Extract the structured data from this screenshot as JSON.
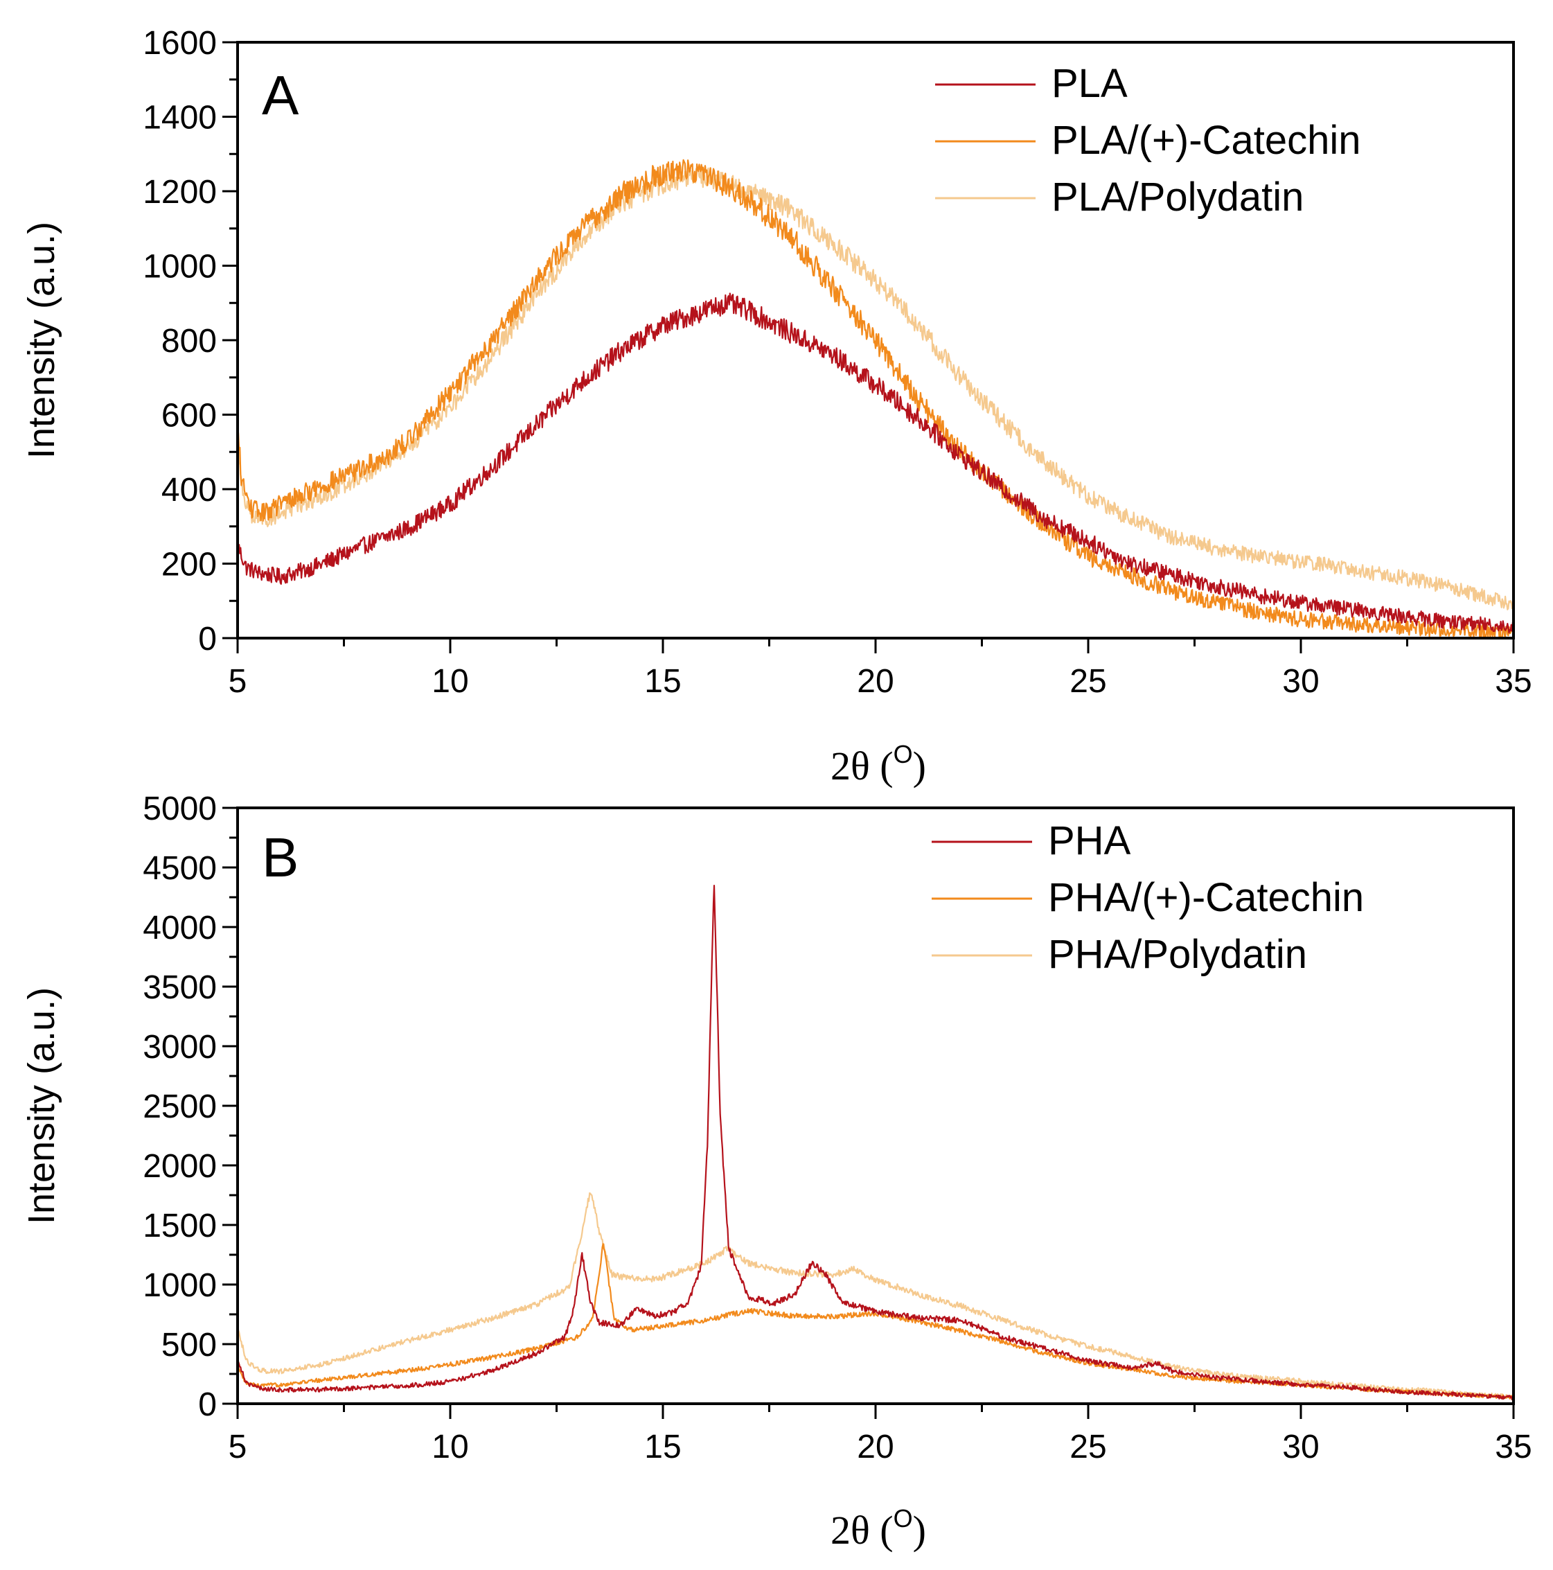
{
  "chart_data": [
    {
      "type": "line",
      "panel_label": "A",
      "xlabel": "2θ (",
      "xlabel_sup": "O",
      "xlabel_close": ")",
      "ylabel": "Intensity (a.u.)",
      "xlim": [
        5,
        35
      ],
      "ylim": [
        0,
        1600
      ],
      "x_ticks": [
        5,
        10,
        15,
        20,
        25,
        30,
        35
      ],
      "y_ticks": [
        0,
        200,
        400,
        600,
        800,
        1000,
        1200,
        1400,
        1600
      ],
      "legend_position": "top-right",
      "series": [
        {
          "name": "PLA",
          "color": "#b5121b",
          "noise": 28,
          "points": [
            [
              5,
              250
            ],
            [
              5.2,
              190
            ],
            [
              5.5,
              175
            ],
            [
              6,
              165
            ],
            [
              6.5,
              180
            ],
            [
              7,
              200
            ],
            [
              8,
              250
            ],
            [
              9,
              295
            ],
            [
              10,
              360
            ],
            [
              11,
              460
            ],
            [
              12,
              570
            ],
            [
              13,
              680
            ],
            [
              14,
              770
            ],
            [
              15,
              840
            ],
            [
              16,
              880
            ],
            [
              16.5,
              900
            ],
            [
              17,
              880
            ],
            [
              18,
              820
            ],
            [
              19,
              760
            ],
            [
              20,
              680
            ],
            [
              21,
              590
            ],
            [
              22,
              490
            ],
            [
              23,
              400
            ],
            [
              24,
              320
            ],
            [
              25,
              260
            ],
            [
              26,
              200
            ],
            [
              27,
              170
            ],
            [
              28,
              140
            ],
            [
              29,
              115
            ],
            [
              30,
              95
            ],
            [
              31,
              80
            ],
            [
              32,
              65
            ],
            [
              33,
              50
            ],
            [
              34,
              40
            ],
            [
              35,
              30
            ]
          ]
        },
        {
          "name": "PLA/(+)-Catechin",
          "color": "#f28a1c",
          "noise": 30,
          "points": [
            [
              5,
              560
            ],
            [
              5.1,
              420
            ],
            [
              5.3,
              350
            ],
            [
              5.6,
              335
            ],
            [
              6,
              360
            ],
            [
              7,
              410
            ],
            [
              8,
              460
            ],
            [
              8.5,
              490
            ],
            [
              9,
              530
            ],
            [
              10,
              660
            ],
            [
              11,
              800
            ],
            [
              12,
              960
            ],
            [
              13,
              1090
            ],
            [
              14,
              1190
            ],
            [
              15,
              1250
            ],
            [
              15.5,
              1260
            ],
            [
              16,
              1250
            ],
            [
              17,
              1180
            ],
            [
              18,
              1080
            ],
            [
              19,
              940
            ],
            [
              20,
              800
            ],
            [
              21,
              640
            ],
            [
              22,
              500
            ],
            [
              23,
              400
            ],
            [
              24,
              300
            ],
            [
              25,
              220
            ],
            [
              26,
              170
            ],
            [
              27,
              125
            ],
            [
              28,
              95
            ],
            [
              29,
              70
            ],
            [
              30,
              50
            ],
            [
              31,
              40
            ],
            [
              32,
              30
            ],
            [
              33,
              25
            ],
            [
              34,
              20
            ],
            [
              35,
              15
            ]
          ]
        },
        {
          "name": "PLA/Polydatin",
          "color": "#f5c98e",
          "noise": 26,
          "points": [
            [
              5,
              540
            ],
            [
              5.1,
              400
            ],
            [
              5.3,
              330
            ],
            [
              5.6,
              315
            ],
            [
              6,
              335
            ],
            [
              7,
              380
            ],
            [
              8,
              440
            ],
            [
              9,
              510
            ],
            [
              10,
              620
            ],
            [
              11,
              760
            ],
            [
              12,
              920
            ],
            [
              13,
              1060
            ],
            [
              14,
              1170
            ],
            [
              15,
              1220
            ],
            [
              16,
              1240
            ],
            [
              17,
              1200
            ],
            [
              18,
              1150
            ],
            [
              19,
              1060
            ],
            [
              20,
              960
            ],
            [
              21,
              840
            ],
            [
              22,
              700
            ],
            [
              23,
              580
            ],
            [
              24,
              470
            ],
            [
              25,
              380
            ],
            [
              26,
              320
            ],
            [
              27,
              270
            ],
            [
              28,
              240
            ],
            [
              29,
              220
            ],
            [
              30,
              205
            ],
            [
              31,
              190
            ],
            [
              32,
              170
            ],
            [
              33,
              150
            ],
            [
              34,
              120
            ],
            [
              35,
              90
            ]
          ]
        }
      ]
    },
    {
      "type": "line",
      "panel_label": "B",
      "xlabel": "2θ (",
      "xlabel_sup": "O",
      "xlabel_close": ")",
      "ylabel": "Intensity (a.u.)",
      "xlim": [
        5,
        35
      ],
      "ylim": [
        0,
        5000
      ],
      "x_ticks": [
        5,
        10,
        15,
        20,
        25,
        30,
        35
      ],
      "y_ticks": [
        0,
        500,
        1000,
        1500,
        2000,
        2500,
        3000,
        3500,
        4000,
        4500,
        5000
      ],
      "legend_position": "top-right",
      "series": [
        {
          "name": "PHA",
          "color": "#b5121b",
          "noise": 25,
          "points": [
            [
              5,
              380
            ],
            [
              5.2,
              180
            ],
            [
              5.5,
              130
            ],
            [
              6,
              115
            ],
            [
              7,
              120
            ],
            [
              8,
              135
            ],
            [
              9,
              150
            ],
            [
              10,
              185
            ],
            [
              11,
              280
            ],
            [
              12,
              420
            ],
            [
              12.7,
              560
            ],
            [
              12.9,
              800
            ],
            [
              13.1,
              1250
            ],
            [
              13.3,
              850
            ],
            [
              13.5,
              680
            ],
            [
              14,
              660
            ],
            [
              14.4,
              800
            ],
            [
              14.8,
              740
            ],
            [
              15.2,
              760
            ],
            [
              15.6,
              860
            ],
            [
              15.9,
              1150
            ],
            [
              16.05,
              2200
            ],
            [
              16.2,
              4400
            ],
            [
              16.35,
              2400
            ],
            [
              16.55,
              1300
            ],
            [
              17,
              900
            ],
            [
              17.6,
              840
            ],
            [
              18.1,
              920
            ],
            [
              18.5,
              1180
            ],
            [
              18.8,
              1100
            ],
            [
              19.2,
              860
            ],
            [
              20,
              770
            ],
            [
              21,
              720
            ],
            [
              22,
              700
            ],
            [
              22.6,
              620
            ],
            [
              23,
              560
            ],
            [
              24,
              460
            ],
            [
              25,
              360
            ],
            [
              26,
              300
            ],
            [
              26.6,
              340
            ],
            [
              27,
              270
            ],
            [
              28,
              220
            ],
            [
              29,
              190
            ],
            [
              30,
              160
            ],
            [
              31,
              140
            ],
            [
              32,
              110
            ],
            [
              33,
              90
            ],
            [
              34,
              70
            ],
            [
              35,
              50
            ]
          ]
        },
        {
          "name": "PHA/(+)-Catechin",
          "color": "#f28a1c",
          "noise": 22,
          "points": [
            [
              5,
              300
            ],
            [
              5.2,
              170
            ],
            [
              5.5,
              150
            ],
            [
              6,
              160
            ],
            [
              7,
              200
            ],
            [
              8,
              240
            ],
            [
              9,
              280
            ],
            [
              10,
              330
            ],
            [
              11,
              390
            ],
            [
              12,
              460
            ],
            [
              13,
              560
            ],
            [
              13.35,
              720
            ],
            [
              13.6,
              1350
            ],
            [
              13.85,
              720
            ],
            [
              14.2,
              620
            ],
            [
              15,
              650
            ],
            [
              16,
              700
            ],
            [
              17,
              780
            ],
            [
              17.5,
              760
            ],
            [
              18,
              740
            ],
            [
              19,
              730
            ],
            [
              20,
              760
            ],
            [
              21,
              690
            ],
            [
              22,
              610
            ],
            [
              23,
              520
            ],
            [
              24,
              420
            ],
            [
              25,
              340
            ],
            [
              26,
              290
            ],
            [
              27,
              230
            ],
            [
              28,
              200
            ],
            [
              29,
              180
            ],
            [
              30,
              160
            ],
            [
              31,
              130
            ],
            [
              32,
              110
            ],
            [
              33,
              90
            ],
            [
              34,
              70
            ],
            [
              35,
              55
            ]
          ]
        },
        {
          "name": "PHA/Polydatin",
          "color": "#f5c98e",
          "noise": 25,
          "points": [
            [
              5,
              650
            ],
            [
              5.2,
              360
            ],
            [
              5.5,
              280
            ],
            [
              6,
              270
            ],
            [
              7,
              330
            ],
            [
              8,
              430
            ],
            [
              9,
              530
            ],
            [
              10,
              620
            ],
            [
              11,
              720
            ],
            [
              12,
              830
            ],
            [
              12.8,
              980
            ],
            [
              13.1,
              1450
            ],
            [
              13.3,
              1800
            ],
            [
              13.5,
              1450
            ],
            [
              13.8,
              1080
            ],
            [
              14.5,
              1040
            ],
            [
              15,
              1060
            ],
            [
              15.5,
              1120
            ],
            [
              16,
              1180
            ],
            [
              16.5,
              1300
            ],
            [
              17,
              1180
            ],
            [
              18,
              1100
            ],
            [
              19,
              1080
            ],
            [
              19.5,
              1130
            ],
            [
              20,
              1040
            ],
            [
              21,
              920
            ],
            [
              22,
              820
            ],
            [
              23,
              700
            ],
            [
              24,
              580
            ],
            [
              25,
              480
            ],
            [
              26,
              400
            ],
            [
              27,
              310
            ],
            [
              28,
              250
            ],
            [
              29,
              220
            ],
            [
              30,
              190
            ],
            [
              31,
              160
            ],
            [
              32,
              130
            ],
            [
              33,
              110
            ],
            [
              34,
              80
            ],
            [
              35,
              60
            ]
          ]
        }
      ]
    }
  ]
}
